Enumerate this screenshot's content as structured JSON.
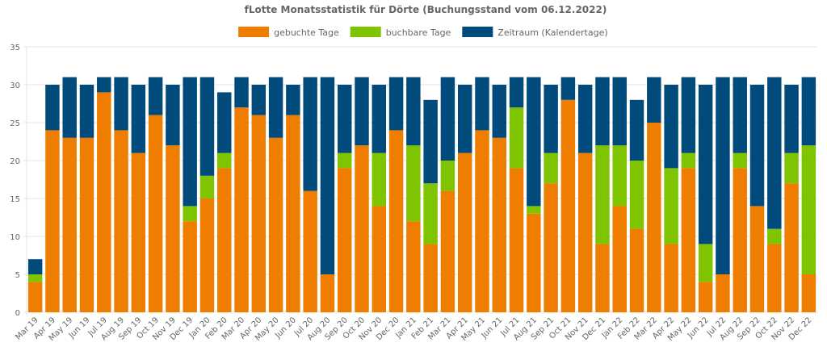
{
  "chart_data": {
    "type": "bar",
    "stacked": true,
    "title": "fLotte Monatsstatistik für Dörte (Buchungsstand vom 06.12.2022)",
    "legend_position": "top",
    "ylim": [
      0,
      35
    ],
    "yticks": [
      0,
      5,
      10,
      15,
      20,
      25,
      30,
      35
    ],
    "grid": true,
    "categories": [
      "Mar 19",
      "Apr 19",
      "May 19",
      "Jun 19",
      "Jul 19",
      "Aug 19",
      "Sep 19",
      "Oct 19",
      "Nov 19",
      "Dec 19",
      "Jan 20",
      "Feb 20",
      "Mar 20",
      "Apr 20",
      "May 20",
      "Jun 20",
      "Jul 20",
      "Aug 20",
      "Sep 20",
      "Oct 20",
      "Nov 20",
      "Dec 20",
      "Jan 21",
      "Feb 21",
      "Mar 21",
      "Apr 21",
      "May 21",
      "Jun 21",
      "Jul 21",
      "Aug 21",
      "Sep 21",
      "Oct 21",
      "Nov 21",
      "Dec 21",
      "Jan 22",
      "Feb 22",
      "Mar 22",
      "Apr 22",
      "May 22",
      "Jun 22",
      "Jul 22",
      "Aug 22",
      "Sep 22",
      "Oct 22",
      "Nov 22",
      "Dec 22"
    ],
    "series": [
      {
        "name": "gebuchte Tage",
        "color": "#ee7d00",
        "values": [
          4,
          24,
          23,
          23,
          29,
          24,
          21,
          26,
          22,
          12,
          15,
          19,
          27,
          26,
          23,
          26,
          16,
          5,
          19,
          22,
          14,
          24,
          12,
          9,
          16,
          21,
          24,
          23,
          19,
          13,
          17,
          28,
          21,
          9,
          14,
          11,
          25,
          9,
          19,
          4,
          5,
          19,
          14,
          9,
          17,
          5
        ]
      },
      {
        "name": "buchbare Tage",
        "color": "#7ec400",
        "values": [
          1,
          0,
          0,
          0,
          0,
          0,
          0,
          0,
          0,
          2,
          3,
          2,
          0,
          0,
          0,
          0,
          0,
          0,
          2,
          0,
          7,
          0,
          10,
          8,
          4,
          0,
          0,
          0,
          8,
          1,
          4,
          0,
          0,
          13,
          8,
          9,
          0,
          10,
          2,
          5,
          0,
          2,
          0,
          2,
          4,
          17
        ]
      },
      {
        "name": "Zeitraum (Kalendertage)",
        "color": "#004b7c",
        "values": [
          2,
          6,
          8,
          7,
          2,
          7,
          9,
          5,
          8,
          17,
          13,
          8,
          4,
          4,
          8,
          4,
          15,
          26,
          9,
          9,
          9,
          7,
          9,
          11,
          11,
          9,
          7,
          7,
          4,
          17,
          9,
          3,
          9,
          9,
          9,
          8,
          6,
          11,
          10,
          21,
          26,
          10,
          16,
          20,
          9,
          9
        ]
      }
    ]
  }
}
